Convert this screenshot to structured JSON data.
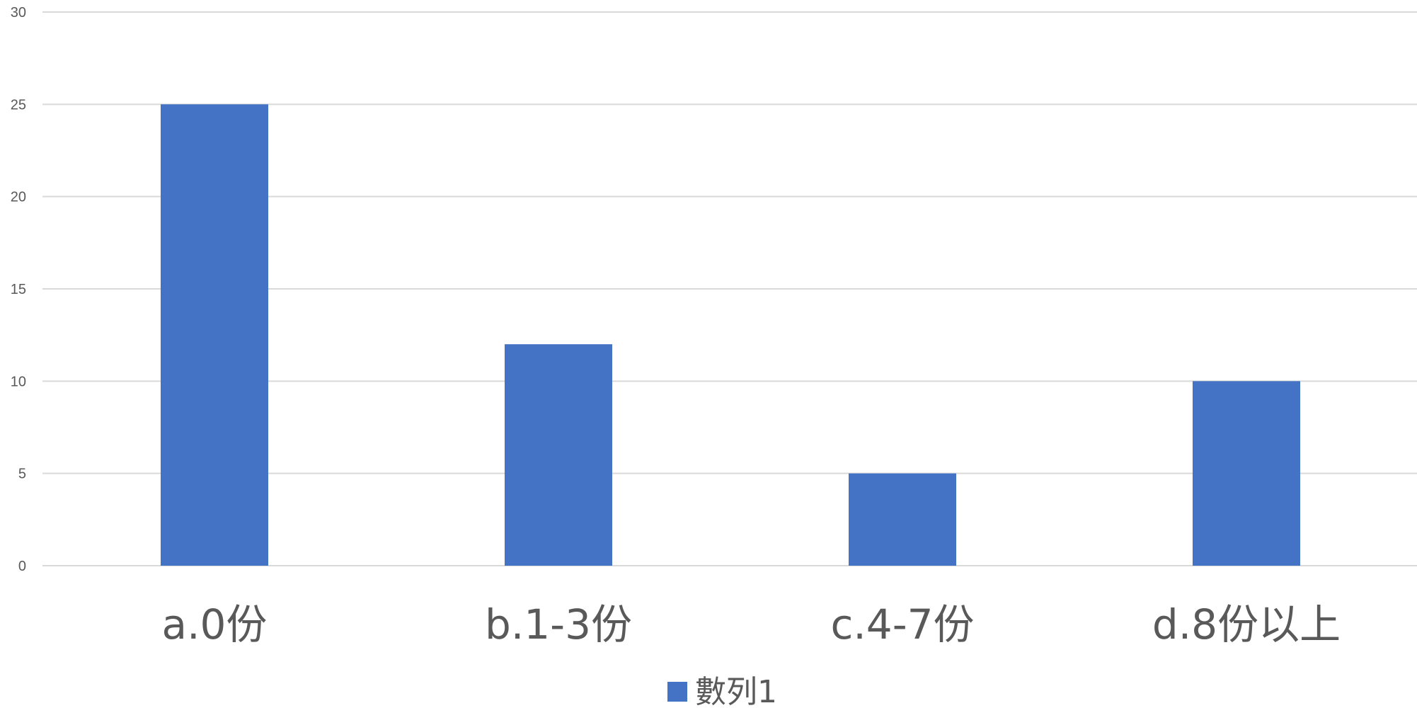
{
  "chart_data": {
    "type": "bar",
    "categories": [
      "a.0份",
      "b.1-3份",
      "c.4-7份",
      "d.8份以上"
    ],
    "series": [
      {
        "name": "數列1",
        "values": [
          25,
          12,
          5,
          10
        ],
        "color": "#4472c4"
      }
    ],
    "title": "",
    "xlabel": "",
    "ylabel": "",
    "ylim": [
      0,
      30
    ],
    "yticks": [
      0,
      5,
      10,
      15,
      20,
      25,
      30
    ],
    "grid": true,
    "legend": "bottom-center"
  }
}
